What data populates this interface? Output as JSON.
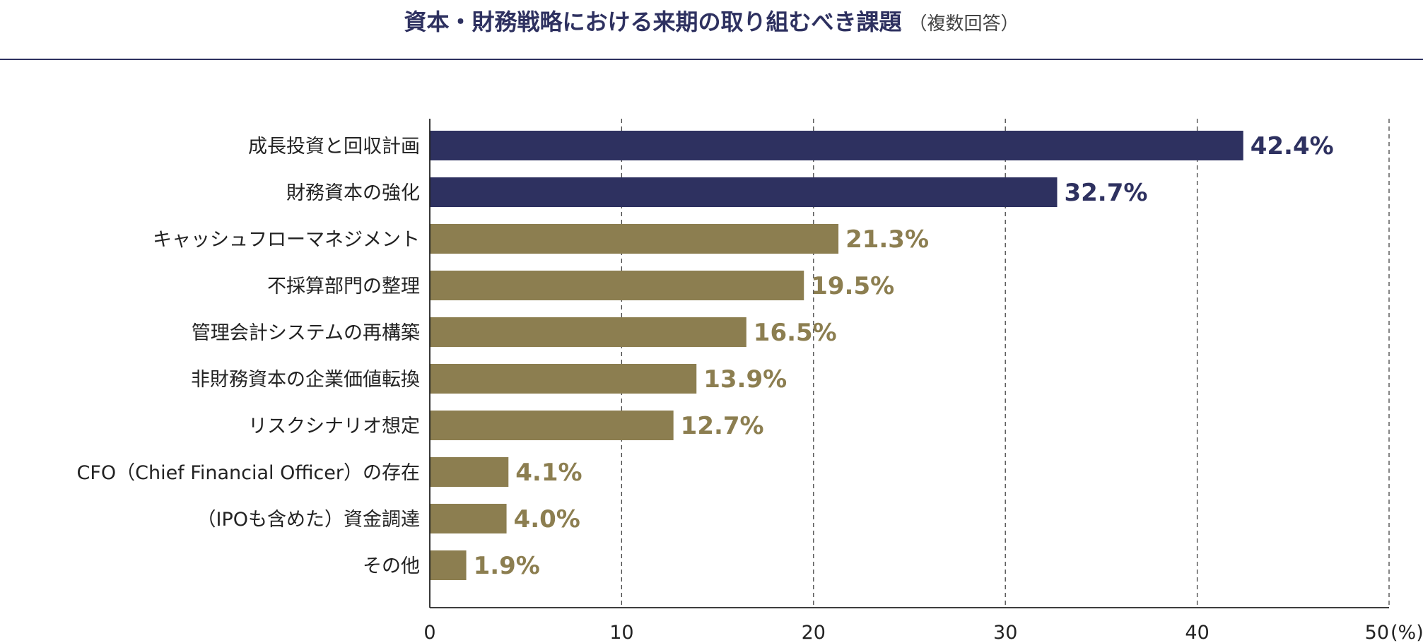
{
  "chart_data": {
    "type": "bar",
    "orientation": "horizontal",
    "title": "資本・財務戦略における来期の取り組むべき課題",
    "subtitle": "（複数回答）",
    "categories": [
      "成長投資と回収計画",
      "財務資本の強化",
      "キャッシュフローマネジメント",
      "不採算部門の整理",
      "管理会計システムの再構築",
      "非財務資本の企業価値転換",
      "リスクシナリオ想定",
      "CFO（Chief Financial Officer）の存在",
      "（IPOも含めた）資金調達",
      "その他"
    ],
    "values": [
      42.4,
      32.7,
      21.3,
      19.5,
      16.5,
      13.9,
      12.7,
      4.1,
      4.0,
      1.9
    ],
    "value_labels": [
      "42.4%",
      "32.7%",
      "21.3%",
      "19.5%",
      "16.5%",
      "13.9%",
      "12.7%",
      "4.1%",
      "4.0%",
      "1.9%"
    ],
    "highlight_count": 2,
    "xlim": [
      0,
      50
    ],
    "xticks": [
      0,
      10,
      20,
      30,
      40,
      50
    ],
    "xtick_labels": [
      "0",
      "10",
      "20",
      "30",
      "40",
      "50"
    ],
    "unit_label": "(%)",
    "grid": "vertical-dashed",
    "colors": {
      "highlight": "#2e3160",
      "normal": "#8c7e50",
      "axis": "#222222",
      "grid": "#444444"
    }
  }
}
